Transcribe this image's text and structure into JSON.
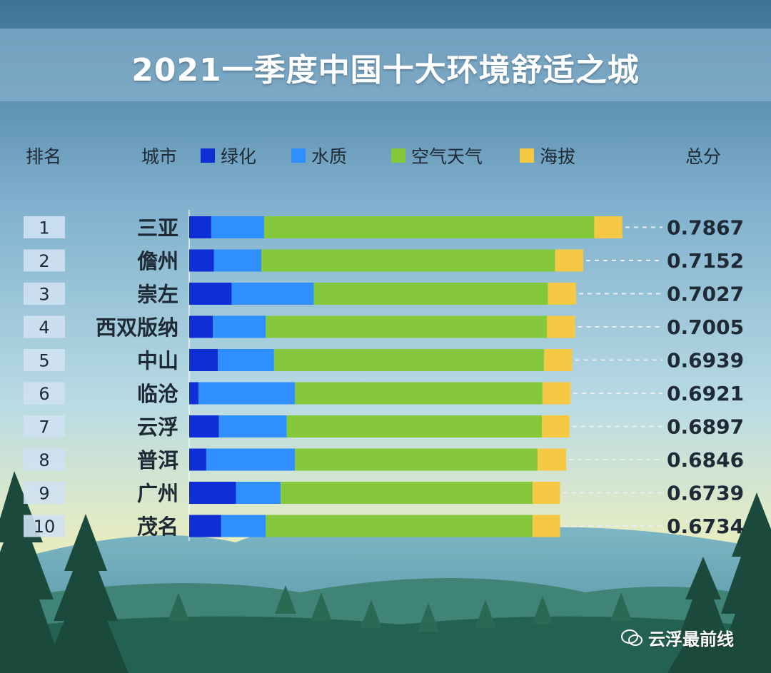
{
  "title": "2021一季度中国十大环境舒适之城",
  "headers": {
    "rank": "排名",
    "city": "城市",
    "total": "总分"
  },
  "watermark": "云浮最前线",
  "chart_data": {
    "type": "bar",
    "orientation": "horizontal",
    "stacked": true,
    "categories": [
      "三亚",
      "儋州",
      "崇左",
      "西双版纳",
      "中山",
      "临沧",
      "云浮",
      "普洱",
      "广州",
      "茂名"
    ],
    "ranks": [
      "1",
      "2",
      "3",
      "4",
      "5",
      "6",
      "7",
      "8",
      "9",
      "10"
    ],
    "totals": [
      "0.7867",
      "0.7152",
      "0.7027",
      "0.7005",
      "0.6939",
      "0.6921",
      "0.6897",
      "0.6846",
      "0.6739",
      "0.6734"
    ],
    "series": [
      {
        "name": "绿化",
        "color": "#0f2fd6",
        "values": [
          0.04,
          0.045,
          0.077,
          0.043,
          0.052,
          0.017,
          0.054,
          0.031,
          0.085,
          0.058
        ]
      },
      {
        "name": "水质",
        "color": "#2f8fff",
        "values": [
          0.096,
          0.086,
          0.149,
          0.096,
          0.102,
          0.175,
          0.123,
          0.161,
          0.081,
          0.081
        ]
      },
      {
        "name": "空气天气",
        "color": "#86c83c",
        "values": [
          0.599,
          0.533,
          0.425,
          0.51,
          0.49,
          0.449,
          0.463,
          0.44,
          0.457,
          0.484
        ]
      },
      {
        "name": "海拔",
        "color": "#f6c944",
        "values": [
          0.051,
          0.051,
          0.051,
          0.051,
          0.051,
          0.051,
          0.05,
          0.052,
          0.05,
          0.05
        ]
      }
    ]
  }
}
